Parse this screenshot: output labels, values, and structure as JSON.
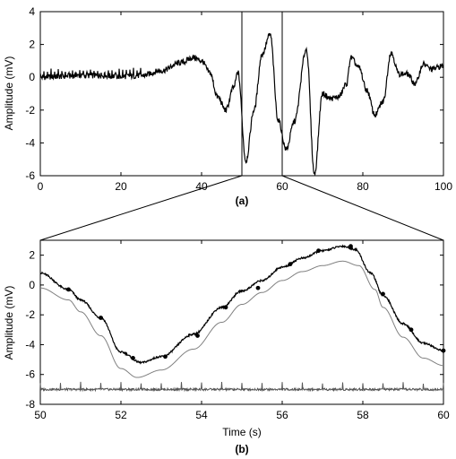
{
  "chart_data": [
    {
      "type": "line",
      "panel_label": "(a)",
      "ylabel": "Amplitude (mV)",
      "xlabel": "",
      "xlim": [
        0,
        100
      ],
      "ylim": [
        -6,
        4
      ],
      "xticks": [
        0,
        20,
        40,
        60,
        80,
        100
      ],
      "yticks": [
        -6,
        -4,
        -2,
        0,
        2,
        4
      ],
      "grid": false,
      "series": [
        {
          "color": "#000000",
          "x": [
            0,
            5,
            10,
            15,
            20,
            25,
            30,
            35,
            38,
            40,
            42,
            44,
            46,
            48,
            49,
            51,
            53,
            55,
            57,
            59,
            61,
            63,
            66,
            68,
            70,
            72,
            74,
            76,
            77,
            79,
            81,
            83,
            85,
            87,
            89,
            91,
            93,
            95,
            97,
            100
          ],
          "values": [
            0,
            0.05,
            0.1,
            0.1,
            0.05,
            0.1,
            0.4,
            0.9,
            1.2,
            1.0,
            0.3,
            -1.2,
            -2.0,
            -0.6,
            0.3,
            -5.1,
            -2.0,
            1.4,
            2.6,
            -2.6,
            -4.4,
            -2.7,
            1.7,
            -5.9,
            -1.0,
            -1.3,
            -1.2,
            -0.4,
            1.2,
            0.6,
            -0.8,
            -2.3,
            -1.5,
            1.5,
            0.2,
            0.2,
            -0.4,
            0.8,
            0.5,
            0.7
          ]
        }
      ],
      "highlight_x_range": [
        50,
        60
      ]
    },
    {
      "type": "line",
      "panel_label": "(b)",
      "ylabel": "Amplitude (mV)",
      "xlabel": "Time (s)",
      "xlim": [
        50,
        60
      ],
      "ylim": [
        -8,
        3
      ],
      "xticks": [
        50,
        52,
        54,
        56,
        58,
        60
      ],
      "yticks": [
        -8,
        -6,
        -4,
        -2,
        0,
        2
      ],
      "grid": false,
      "series": [
        {
          "color": "#000000",
          "x": [
            50,
            50.7,
            51,
            51.5,
            52,
            52.5,
            53,
            53.8,
            54.5,
            55,
            55.5,
            56,
            56.5,
            57,
            57.5,
            57.8,
            58.2,
            58.5,
            59,
            59.5,
            60
          ],
          "values": [
            0.8,
            -0.3,
            -1.0,
            -2.2,
            -4.5,
            -5.2,
            -4.8,
            -3.3,
            -1.5,
            -0.4,
            0.3,
            1.2,
            1.8,
            2.3,
            2.6,
            2.4,
            0.8,
            -0.7,
            -2.6,
            -3.9,
            -4.4
          ],
          "markers_x": [
            50.7,
            51.5,
            52.3,
            53.1,
            53.9,
            54.6,
            55.4,
            56.2,
            56.9,
            57.7,
            58.5,
            59.2,
            60
          ],
          "markers_y": [
            -0.3,
            -2.2,
            -4.9,
            -4.8,
            -3.4,
            -1.5,
            -0.2,
            1.4,
            2.3,
            2.6,
            -0.6,
            -3.0,
            -4.4
          ]
        },
        {
          "color": "#808080",
          "x": [
            50,
            50.7,
            51,
            51.5,
            52,
            52.4,
            53,
            53.8,
            54.5,
            55,
            55.5,
            56,
            56.5,
            57,
            57.5,
            57.9,
            58.3,
            58.5,
            59,
            59.5,
            60
          ],
          "values": [
            -0.2,
            -1.0,
            -1.8,
            -3.4,
            -5.6,
            -6.2,
            -5.7,
            -4.3,
            -2.5,
            -1.3,
            -0.5,
            0.3,
            0.9,
            1.3,
            1.6,
            1.3,
            -0.3,
            -1.5,
            -3.5,
            -4.9,
            -5.4
          ]
        },
        {
          "color": "#555555",
          "baseline": -7.0,
          "x": [
            50,
            50.5,
            51,
            51.6,
            52,
            52.5,
            53,
            53.6,
            54,
            54.7,
            55,
            55.8,
            56.2,
            56.8,
            57.2,
            57.8,
            58.4,
            58.8,
            59.3,
            59.8,
            60
          ],
          "values": [
            -7.0,
            -6.9,
            -7.1,
            -6.7,
            -7.0,
            -6.8,
            -7.0,
            -6.9,
            -7.0,
            -6.8,
            -7.0,
            -6.8,
            -7.0,
            -6.8,
            -7.0,
            -6.8,
            -7.0,
            -6.8,
            -7.0,
            -6.9,
            -7.0
          ]
        }
      ]
    }
  ]
}
